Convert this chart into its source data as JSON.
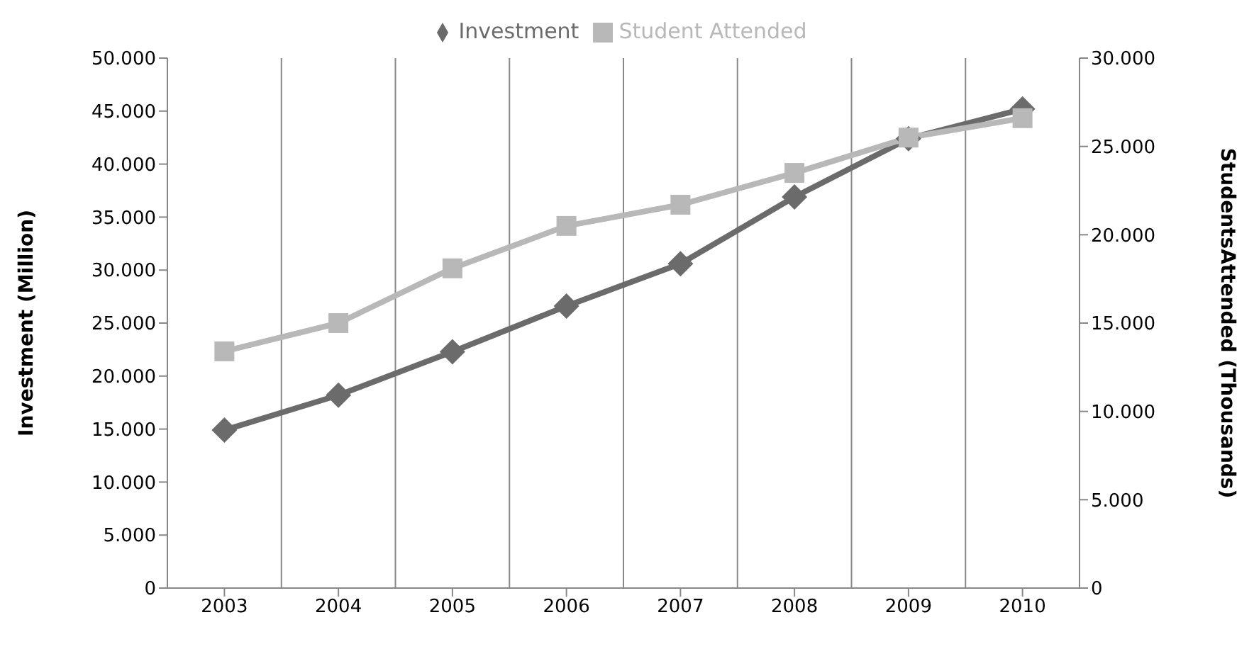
{
  "chart_data": {
    "type": "line",
    "categories": [
      "2003",
      "2004",
      "2005",
      "2006",
      "2007",
      "2008",
      "2009",
      "2010"
    ],
    "series": [
      {
        "name": "Investment",
        "color": "#6b6b6b",
        "marker": "diamond",
        "values": [
          14900,
          18200,
          22300,
          26600,
          30600,
          36900,
          42400,
          45200
        ]
      },
      {
        "name": "Student Attended",
        "color": "#b8b8b8",
        "marker": "square",
        "axis": "y2",
        "values": [
          13400,
          15000,
          18100,
          20500,
          21700,
          23500,
          25500,
          26600
        ]
      }
    ],
    "ylabel": "Investment (Million)",
    "y2label": "StudentsAttended (Thousands)",
    "ylim": [
      0,
      50000
    ],
    "yticks": [
      {
        "value": 0,
        "label": "0"
      },
      {
        "value": 5000,
        "label": "5.000"
      },
      {
        "value": 10000,
        "label": "10.000"
      },
      {
        "value": 15000,
        "label": "15.000"
      },
      {
        "value": 20000,
        "label": "20.000"
      },
      {
        "value": 25000,
        "label": "25.000"
      },
      {
        "value": 30000,
        "label": "30.000"
      },
      {
        "value": 35000,
        "label": "35.000"
      },
      {
        "value": 40000,
        "label": "40.000"
      },
      {
        "value": 45000,
        "label": "45.000"
      },
      {
        "value": 50000,
        "label": "50.000"
      }
    ],
    "y2lim": [
      0,
      30000
    ],
    "y2ticks": [
      {
        "value": 0,
        "label": "0"
      },
      {
        "value": 5000,
        "label": "5.000"
      },
      {
        "value": 10000,
        "label": "10.000"
      },
      {
        "value": 15000,
        "label": "15.000"
      },
      {
        "value": 20000,
        "label": "20.000"
      },
      {
        "value": 25000,
        "label": "25.000"
      },
      {
        "value": 30000,
        "label": "30.000"
      }
    ],
    "grid": "x",
    "legend": "top",
    "line_style": "solid"
  }
}
